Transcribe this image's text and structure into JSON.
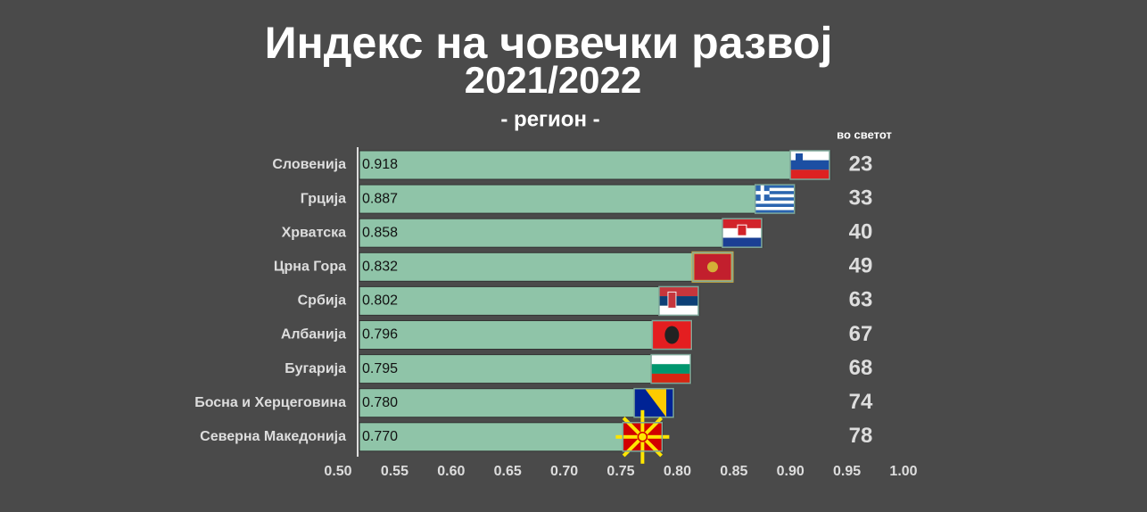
{
  "chart_data": {
    "type": "bar",
    "orientation": "horizontal",
    "title": "Индекс на човечки развој",
    "title_line2": "2021/2022",
    "subtitle": "- регион -",
    "categories": [
      "Словенија",
      "Грција",
      "Хрватска",
      "Црна Гора",
      "Србија",
      "Албанија",
      "Бугарија",
      "Босна и Херцеговина",
      "Северна Македонија"
    ],
    "values": [
      0.918,
      0.887,
      0.858,
      0.832,
      0.802,
      0.796,
      0.795,
      0.78,
      0.77
    ],
    "value_labels": [
      "0.918",
      "0.887",
      "0.858",
      "0.832",
      "0.802",
      "0.796",
      "0.795",
      "0.780",
      "0.770"
    ],
    "color": "#8fc4a8",
    "rank_header": "во светот",
    "ranks": [
      23,
      33,
      40,
      49,
      63,
      67,
      68,
      74,
      78
    ],
    "xlim": [
      0.5,
      1.0
    ],
    "xticks": [
      {
        "value": 0.5,
        "label": "0.50"
      },
      {
        "value": 0.55,
        "label": "0.55"
      },
      {
        "value": 0.6,
        "label": "0.60"
      },
      {
        "value": 0.65,
        "label": "0.65"
      },
      {
        "value": 0.7,
        "label": "0.70"
      },
      {
        "value": 0.75,
        "label": "0.75"
      },
      {
        "value": 0.8,
        "label": "0.80"
      },
      {
        "value": 0.85,
        "label": "0.85"
      },
      {
        "value": 0.9,
        "label": "0.90"
      },
      {
        "value": 0.95,
        "label": "0.95"
      },
      {
        "value": 1.0,
        "label": "1.00"
      }
    ]
  }
}
